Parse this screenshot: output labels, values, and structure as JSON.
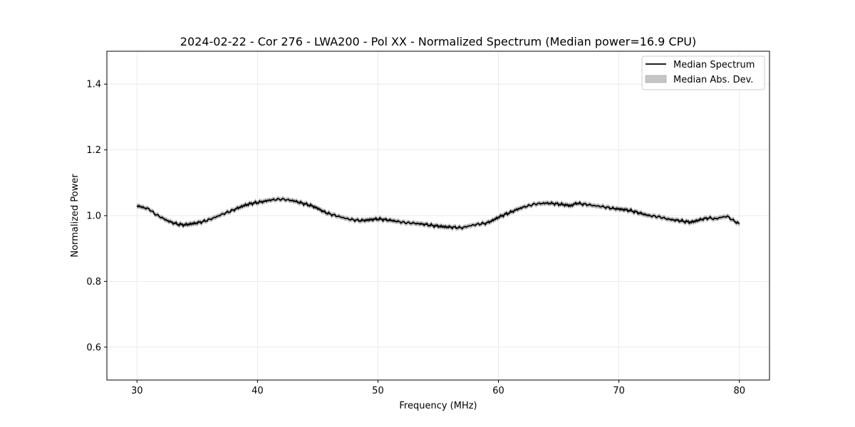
{
  "chart_data": {
    "type": "line",
    "title": "2024-02-22 - Cor 276 - LWA200 - Pol XX - Normalized Spectrum (Median power=16.9 CPU)",
    "xlabel": "Frequency (MHz)",
    "ylabel": "Normalized Power",
    "xlim": [
      27.5,
      82.5
    ],
    "ylim": [
      0.5,
      1.5
    ],
    "xticks": [
      30,
      40,
      50,
      60,
      70,
      80
    ],
    "yticks": [
      0.6,
      0.8,
      1.0,
      1.2,
      1.4
    ],
    "xtick_labels": [
      "30",
      "40",
      "50",
      "60",
      "70",
      "80"
    ],
    "ytick_labels": [
      "0.6",
      "0.8",
      "1.0",
      "1.2",
      "1.4"
    ],
    "grid": true,
    "legend_position": "top-right",
    "colors": {
      "line": "#000000",
      "band": "#b3b3b3",
      "grid": "#e5e5e5"
    },
    "series": [
      {
        "name": "Median Spectrum",
        "x": [
          30,
          30.5,
          31,
          31.5,
          32,
          32.5,
          33,
          33.5,
          34,
          34.5,
          35,
          35.5,
          36,
          36.5,
          37,
          37.5,
          38,
          38.5,
          39,
          39.5,
          40,
          40.5,
          41,
          41.5,
          42,
          42.5,
          43,
          43.5,
          44,
          44.5,
          45,
          45.5,
          46,
          46.5,
          47,
          47.5,
          48,
          48.5,
          49,
          49.5,
          50,
          50.5,
          51,
          51.5,
          52,
          52.5,
          53,
          53.5,
          54,
          54.5,
          55,
          55.5,
          56,
          56.5,
          57,
          57.5,
          58,
          58.5,
          59,
          59.5,
          60,
          60.5,
          61,
          61.5,
          62,
          62.5,
          63,
          63.5,
          64,
          64.5,
          65,
          65.5,
          66,
          66.5,
          67,
          67.5,
          68,
          68.5,
          69,
          69.5,
          70,
          70.5,
          71,
          71.5,
          72,
          72.5,
          73,
          73.5,
          74,
          74.5,
          75,
          75.5,
          76,
          76.5,
          77,
          77.5,
          78,
          78.5,
          79,
          79.5,
          80
        ],
        "values": [
          1.03,
          1.025,
          1.02,
          1.005,
          0.995,
          0.985,
          0.978,
          0.973,
          0.972,
          0.975,
          0.978,
          0.982,
          0.988,
          0.995,
          1.003,
          1.01,
          1.017,
          1.025,
          1.032,
          1.037,
          1.04,
          1.043,
          1.047,
          1.049,
          1.05,
          1.048,
          1.045,
          1.04,
          1.035,
          1.03,
          1.022,
          1.012,
          1.005,
          1.0,
          0.995,
          0.99,
          0.987,
          0.985,
          0.986,
          0.988,
          0.99,
          0.988,
          0.986,
          0.983,
          0.98,
          0.978,
          0.977,
          0.975,
          0.973,
          0.97,
          0.968,
          0.966,
          0.965,
          0.964,
          0.963,
          0.968,
          0.972,
          0.975,
          0.977,
          0.985,
          0.995,
          1.003,
          1.01,
          1.018,
          1.025,
          1.03,
          1.035,
          1.037,
          1.038,
          1.037,
          1.035,
          1.033,
          1.03,
          1.038,
          1.035,
          1.033,
          1.03,
          1.028,
          1.025,
          1.022,
          1.02,
          1.018,
          1.015,
          1.01,
          1.005,
          1.0,
          0.998,
          0.995,
          0.99,
          0.987,
          0.985,
          0.982,
          0.98,
          0.985,
          0.99,
          0.993,
          0.99,
          0.995,
          0.998,
          0.985,
          0.975
        ]
      },
      {
        "name": "Median Abs. Dev.",
        "type": "band",
        "x": [
          30,
          30.5,
          31,
          31.5,
          32,
          32.5,
          33,
          33.5,
          34,
          34.5,
          35,
          35.5,
          36,
          36.5,
          37,
          37.5,
          38,
          38.5,
          39,
          39.5,
          40,
          40.5,
          41,
          41.5,
          42,
          42.5,
          43,
          43.5,
          44,
          44.5,
          45,
          45.5,
          46,
          46.5,
          47,
          47.5,
          48,
          48.5,
          49,
          49.5,
          50,
          50.5,
          51,
          51.5,
          52,
          52.5,
          53,
          53.5,
          54,
          54.5,
          55,
          55.5,
          56,
          56.5,
          57,
          57.5,
          58,
          58.5,
          59,
          59.5,
          60,
          60.5,
          61,
          61.5,
          62,
          62.5,
          63,
          63.5,
          64,
          64.5,
          65,
          65.5,
          66,
          66.5,
          67,
          67.5,
          68,
          68.5,
          69,
          69.5,
          70,
          70.5,
          71,
          71.5,
          72,
          72.5,
          73,
          73.5,
          74,
          74.5,
          75,
          75.5,
          76,
          76.5,
          77,
          77.5,
          78,
          78.5,
          79,
          79.5,
          80
        ],
        "deviation": 0.006
      }
    ]
  }
}
